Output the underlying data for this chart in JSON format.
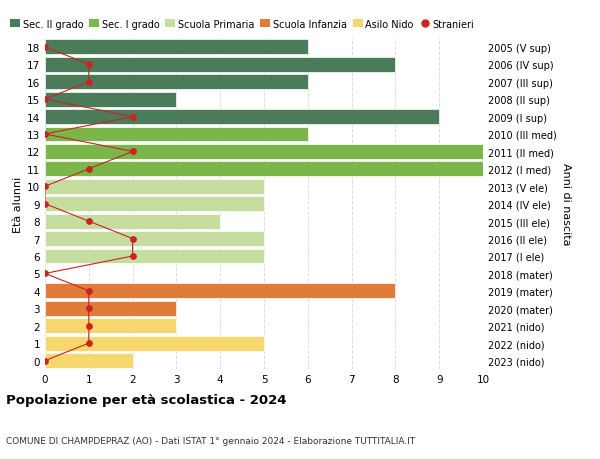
{
  "ages": [
    18,
    17,
    16,
    15,
    14,
    13,
    12,
    11,
    10,
    9,
    8,
    7,
    6,
    5,
    4,
    3,
    2,
    1,
    0
  ],
  "right_labels": [
    "2005 (V sup)",
    "2006 (IV sup)",
    "2007 (III sup)",
    "2008 (II sup)",
    "2009 (I sup)",
    "2010 (III med)",
    "2011 (II med)",
    "2012 (I med)",
    "2013 (V ele)",
    "2014 (IV ele)",
    "2015 (III ele)",
    "2016 (II ele)",
    "2017 (I ele)",
    "2018 (mater)",
    "2019 (mater)",
    "2020 (mater)",
    "2021 (nido)",
    "2022 (nido)",
    "2023 (nido)"
  ],
  "bar_values": [
    6,
    8,
    6,
    3,
    9,
    6,
    11,
    10,
    5,
    5,
    4,
    5,
    5,
    0,
    8,
    3,
    3,
    5,
    2
  ],
  "stranieri_values": [
    0,
    1,
    1,
    0,
    2,
    0,
    2,
    1,
    0,
    0,
    1,
    2,
    2,
    0,
    1,
    1,
    1,
    1,
    0
  ],
  "bar_colors": [
    "#4a7c59",
    "#4a7c59",
    "#4a7c59",
    "#4a7c59",
    "#4a7c59",
    "#7ab648",
    "#7ab648",
    "#7ab648",
    "#c5dea0",
    "#c5dea0",
    "#c5dea0",
    "#c5dea0",
    "#c5dea0",
    "#e07b39",
    "#e07b39",
    "#e07b39",
    "#f5d76e",
    "#f5d76e",
    "#f5d76e"
  ],
  "legend_labels": [
    "Sec. II grado",
    "Sec. I grado",
    "Scuola Primaria",
    "Scuola Infanzia",
    "Asilo Nido",
    "Stranieri"
  ],
  "legend_colors": [
    "#4a7c59",
    "#7ab648",
    "#c5dea0",
    "#e07b39",
    "#f5d76e",
    "#cc2222"
  ],
  "stranieri_color": "#cc2222",
  "title": "Popolazione per età scolastica - 2024",
  "subtitle": "COMUNE DI CHAMPDEPRAZ (AO) - Dati ISTAT 1° gennaio 2024 - Elaborazione TUTTITALIA.IT",
  "ylabel": "Età alunni",
  "right_ylabel": "Anni di nascita",
  "xlim": [
    0,
    10
  ],
  "ylim": [
    -0.5,
    18.5
  ],
  "bg_color": "#ffffff",
  "grid_color": "#dddddd"
}
